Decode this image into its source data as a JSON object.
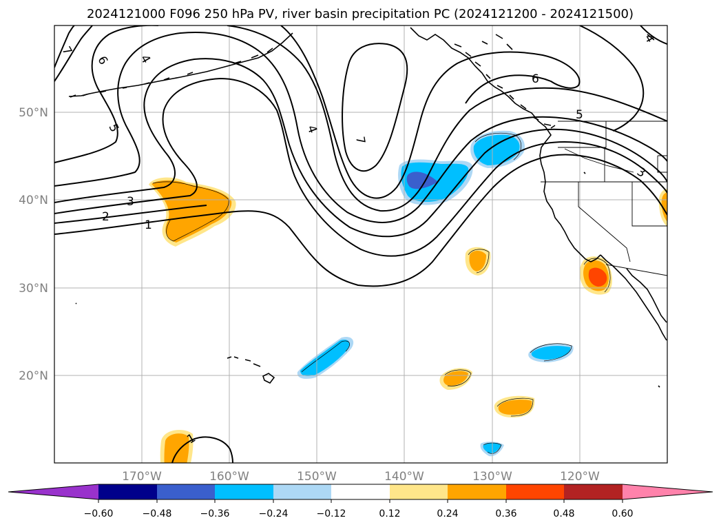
{
  "title": "2024121000 F096 250 hPa PV, river basin precipitation PC (2024121200 - 2024121500)",
  "latitude_labels": [
    "50°N",
    "40°N",
    "30°N",
    "20°N"
  ],
  "longitude_labels": [
    "170°W",
    "160°W",
    "150°W",
    "140°W",
    "130°W",
    "120°W"
  ],
  "colorbar": {
    "extend": "both",
    "tick_labels": [
      "−0.60",
      "−0.48",
      "−0.36",
      "−0.24",
      "−0.12",
      "0.12",
      "0.24",
      "0.36",
      "0.48",
      "0.60"
    ],
    "colors": [
      "#9932cc",
      "#00008b",
      "#3a5fcd",
      "#00bfff",
      "#add8f5",
      "#ffffff",
      "#ffe68a",
      "#ffa500",
      "#ff4500",
      "#b22222",
      "#ff82ab"
    ]
  },
  "contour_labels": [
    "7",
    "6",
    "4",
    "5",
    "4",
    "7",
    "6",
    "5",
    "3",
    "3",
    "2",
    "1",
    "4",
    "1"
  ],
  "chart_data": {
    "type": "map",
    "projection": "plate carree",
    "extent": {
      "lon_min": -180,
      "lon_max": -110,
      "lat_min": 10,
      "lat_max": 60
    },
    "gridlines": true,
    "pv_contour_levels": [
      1,
      2,
      3,
      4,
      5,
      6,
      7
    ],
    "precip_pc_levels": [
      -0.6,
      -0.48,
      -0.36,
      -0.24,
      -0.12,
      0.12,
      0.24,
      0.36,
      0.48,
      0.6
    ],
    "notable_anomalies": [
      {
        "sign": "negative",
        "approx_lon": -138.5,
        "approx_lat": 42.5,
        "min_level": -0.48
      },
      {
        "sign": "negative",
        "approx_lon": -130.5,
        "approx_lat": 46
      },
      {
        "sign": "positive",
        "approx_lon": -163.5,
        "approx_lat": 39
      },
      {
        "sign": "positive",
        "approx_lon": -118,
        "approx_lat": 31.5,
        "max_level": 0.36
      },
      {
        "sign": "negative",
        "approx_lon": -149,
        "approx_lat": 21.5
      },
      {
        "sign": "negative",
        "approx_lon": -123,
        "approx_lat": 23
      },
      {
        "sign": "negative",
        "approx_lon": -129.5,
        "approx_lat": 11.5
      },
      {
        "sign": "positive",
        "approx_lon": -131.5,
        "approx_lat": 33
      },
      {
        "sign": "positive",
        "approx_lon": -133.5,
        "approx_lat": 20
      },
      {
        "sign": "positive",
        "approx_lon": -127,
        "approx_lat": 16.5
      },
      {
        "sign": "positive",
        "approx_lon": -166,
        "approx_lat": 12
      },
      {
        "sign": "positive",
        "approx_lon": -110.5,
        "approx_lat": 38.5
      }
    ]
  }
}
